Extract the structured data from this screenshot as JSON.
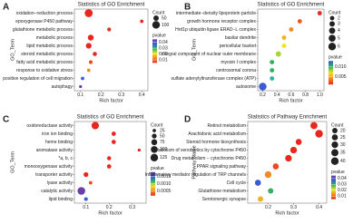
{
  "chart_data": [
    {
      "type": "scatter",
      "label": "A",
      "title": "Statistics of GO Enrichment",
      "ylabel": "GO_Term",
      "xlabel": "Rich factor",
      "categories": [
        "oxidation−reduction process",
        "epoxygenase P450 pathway",
        "glutathione metabolic process",
        "metabolic process",
        "lipid metabolic process",
        "steroid metabolic process",
        "fatty acid metabolic process",
        "response to oxidative stress",
        "positive regulation of cell migration",
        "autophagy"
      ],
      "values": [
        0.14,
        0.4,
        0.24,
        0.15,
        0.14,
        0.17,
        0.15,
        0.14,
        0.11,
        0.1
      ],
      "sizes": [
        110,
        20,
        25,
        60,
        55,
        30,
        25,
        20,
        20,
        15
      ],
      "colors": [
        "#e8281e",
        "#e8281e",
        "#e8281e",
        "#e8281e",
        "#e8281e",
        "#e8281e",
        "#ec4a1e",
        "#f08a24",
        "#3c5ad6",
        "#6b3fa8"
      ],
      "xlim": [
        0.07,
        0.43
      ],
      "xticks": [
        0.1,
        0.2,
        0.3,
        0.4
      ],
      "size_legend": {
        "title": "Count",
        "values": [
          50,
          100
        ]
      },
      "color_legend": {
        "title": "pvalue",
        "range": [
          0.005,
          0.045
        ],
        "ticks": [
          0.01,
          0.02,
          0.03,
          0.04
        ],
        "colors": [
          "#6b3fa8",
          "#3c5ad6",
          "#2fb35a",
          "#f2e21e",
          "#f08a24",
          "#e8281e"
        ]
      }
    },
    {
      "type": "scatter",
      "label": "B",
      "title": "Statistics of GO Enrichment",
      "ylabel": "GO_Term",
      "xlabel": "Rich factor",
      "categories": [
        "intermediate−density lipoprotein particle",
        "growth hormone receptor complex",
        "Hrd1p ubiquitin ligase ERAD−L complex",
        "basilar dendrite",
        "pericellular basket",
        "integral component of nuclear outer membrane",
        "myosin I complex",
        "centrosomal corona",
        "sulfate adenylyltransferase complex (ATP)",
        "autosome"
      ],
      "values": [
        1.0,
        0.72,
        0.6,
        0.5,
        0.5,
        0.42,
        0.33,
        0.33,
        0.33,
        0.2
      ],
      "sizes": [
        2,
        2,
        2,
        2,
        2,
        3,
        2,
        2,
        2,
        6
      ],
      "colors": [
        "#e8281e",
        "#ec5a1e",
        "#f08a24",
        "#f2b022",
        "#f2e21e",
        "#a8d43a",
        "#2fb35a",
        "#2fb35a",
        "#2fb3a0",
        "#3c5ad6"
      ],
      "xlim": [
        0.13,
        1.06
      ],
      "xticks": [
        0.2,
        0.4,
        0.6,
        0.8,
        {
          "value": 1.0,
          "label": "1.0"
        }
      ],
      "size_legend": {
        "title": "Count",
        "values": [
          2,
          3,
          4,
          5,
          6
        ]
      },
      "color_legend": {
        "title": "pvalue",
        "range": [
          0.001,
          0.013
        ],
        "ticks": [
          {
            "value": 0.005,
            "label": "0.005"
          },
          {
            "value": 0.01,
            "label": "0.010"
          }
        ],
        "colors": [
          "#3c5ad6",
          "#2fb35a",
          "#f2e21e",
          "#f08a24",
          "#e8281e"
        ]
      }
    },
    {
      "type": "scatter",
      "label": "C",
      "title": "Statistics of GO Enrichment",
      "ylabel": "GO_Term",
      "xlabel": "Rich factor",
      "categories": [
        "oxidoreductase activity",
        "iron ion binding",
        "heme binding",
        "aromatase activity",
        "*a, b, c",
        "monooxygenase activity",
        "transporter activity",
        "lyase activity",
        "catalytic activity",
        "lipid binding"
      ],
      "values": [
        0.14,
        0.22,
        0.22,
        0.33,
        0.2,
        0.2,
        0.1,
        0.12,
        0.08,
        0.1
      ],
      "sizes": [
        120,
        40,
        40,
        20,
        35,
        40,
        50,
        25,
        130,
        30
      ],
      "colors": [
        "#e8281e",
        "#e8281e",
        "#e8281e",
        "#e8281e",
        "#e8281e",
        "#e8281e",
        "#e8281e",
        "#ec4a1e",
        "#6b3fa8",
        "#3c5ad6"
      ],
      "xlim": [
        0.05,
        0.36
      ],
      "xticks": [
        0.1,
        0.2,
        0.3
      ],
      "size_legend": {
        "title": "Count",
        "values": [
          25,
          50,
          75,
          100,
          125
        ]
      },
      "color_legend": {
        "title": "pvalue",
        "range": [
          0.0002,
          0.0018
        ],
        "ticks": [
          {
            "value": 0.0005,
            "label": "0.0005"
          },
          {
            "value": 0.001,
            "label": "0.0010"
          },
          {
            "value": 0.0015,
            "label": "0.0015"
          }
        ],
        "colors": [
          "#6b3fa8",
          "#3c5ad6",
          "#2fb35a",
          "#f2e21e",
          "#f08a24",
          "#e8281e"
        ]
      }
    },
    {
      "type": "scatter",
      "label": "D",
      "title": "Statistics of Pathway Enrichment",
      "ylabel": "Pathway Name",
      "xlabel": "Rich factor",
      "categories": [
        "Retinol metabolism",
        "Arachidonic acid metabolism",
        "Steroid hormone biosynthesis",
        "Metabolism of xenobiotics by cytochrome P450",
        "Drug metabolism − cytochrome P450",
        "PPAR signaling pathway",
        "Inflammatory mediator regulation of TRP channels",
        "Cell cycle",
        "Glutathione metabolism",
        "Serotonergic synapse"
      ],
      "values": [
        0.38,
        0.4,
        0.32,
        0.3,
        0.28,
        0.23,
        0.2,
        0.16,
        0.21,
        0.17
      ],
      "sizes": [
        35,
        40,
        25,
        30,
        30,
        25,
        30,
        25,
        20,
        20
      ],
      "colors": [
        "#e8281e",
        "#e8281e",
        "#e8281e",
        "#e8281e",
        "#e8281e",
        "#ec4a1e",
        "#f08a24",
        "#3c5ad6",
        "#2fb35a",
        "#f2b022"
      ],
      "xlim": [
        0.12,
        0.43
      ],
      "xticks": [
        0.2,
        0.3,
        0.4
      ],
      "size_legend": {
        "title": "Count",
        "values": [
          20,
          25,
          30,
          35,
          40
        ]
      },
      "color_legend": {
        "title": "pvalue",
        "range": [
          0.005,
          0.045
        ],
        "ticks": [
          0.01,
          0.02,
          0.03,
          0.04
        ],
        "colors": [
          "#6b3fa8",
          "#3c5ad6",
          "#2fb35a",
          "#f2e21e",
          "#f08a24",
          "#e8281e"
        ]
      }
    }
  ]
}
